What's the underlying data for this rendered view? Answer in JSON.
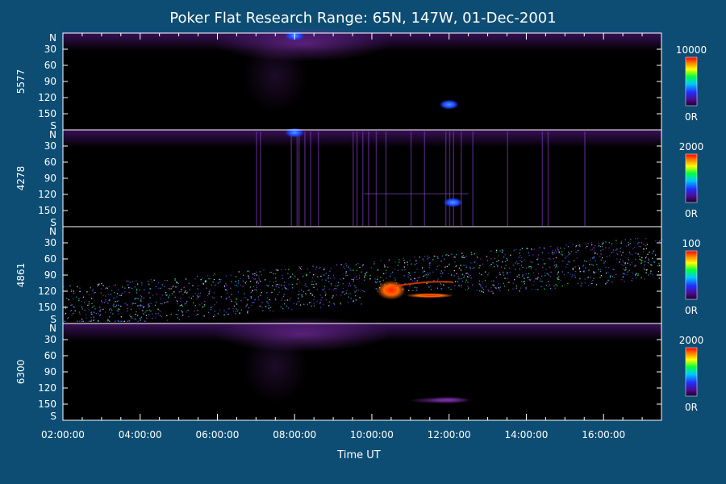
{
  "chart_data": {
    "type": "heatmap",
    "title": "Poker Flat Research Range: 65N, 147W, 01-Dec-2001",
    "xlabel": "Time UT",
    "x_range": [
      "02:00:00",
      "17:30:00"
    ],
    "x_ticks": [
      "02:00:00",
      "04:00:00",
      "06:00:00",
      "08:00:00",
      "10:00:00",
      "12:00:00",
      "14:00:00",
      "16:00:00"
    ],
    "y_ticks": [
      "N",
      "30",
      "60",
      "90",
      "120",
      "150",
      "S"
    ],
    "y_range": [
      0,
      180
    ],
    "panels": [
      {
        "name": "5577",
        "colorbar_max": "10000",
        "colorbar_min": "0R",
        "features": [
          {
            "t": 8.0,
            "y": 5,
            "level": 0.6
          },
          {
            "t": 12.0,
            "y": 133,
            "level": 0.55
          }
        ]
      },
      {
        "name": "4278",
        "colorbar_max": "2000",
        "colorbar_min": "0R",
        "features": [
          {
            "t": 8.0,
            "y": 5,
            "level": 0.6
          },
          {
            "t": 12.1,
            "y": 135,
            "level": 0.7
          }
        ]
      },
      {
        "name": "4861",
        "colorbar_max": "100",
        "colorbar_min": "0R",
        "features": [
          {
            "t": 10.5,
            "y": 118,
            "level": 0.95
          },
          {
            "t": 11.5,
            "y": 128,
            "level": 0.8
          }
        ]
      },
      {
        "name": "6300",
        "colorbar_max": "2000",
        "colorbar_min": "0R",
        "features": [
          {
            "t": 12.0,
            "y": 142,
            "level": 0.3
          }
        ]
      }
    ]
  }
}
